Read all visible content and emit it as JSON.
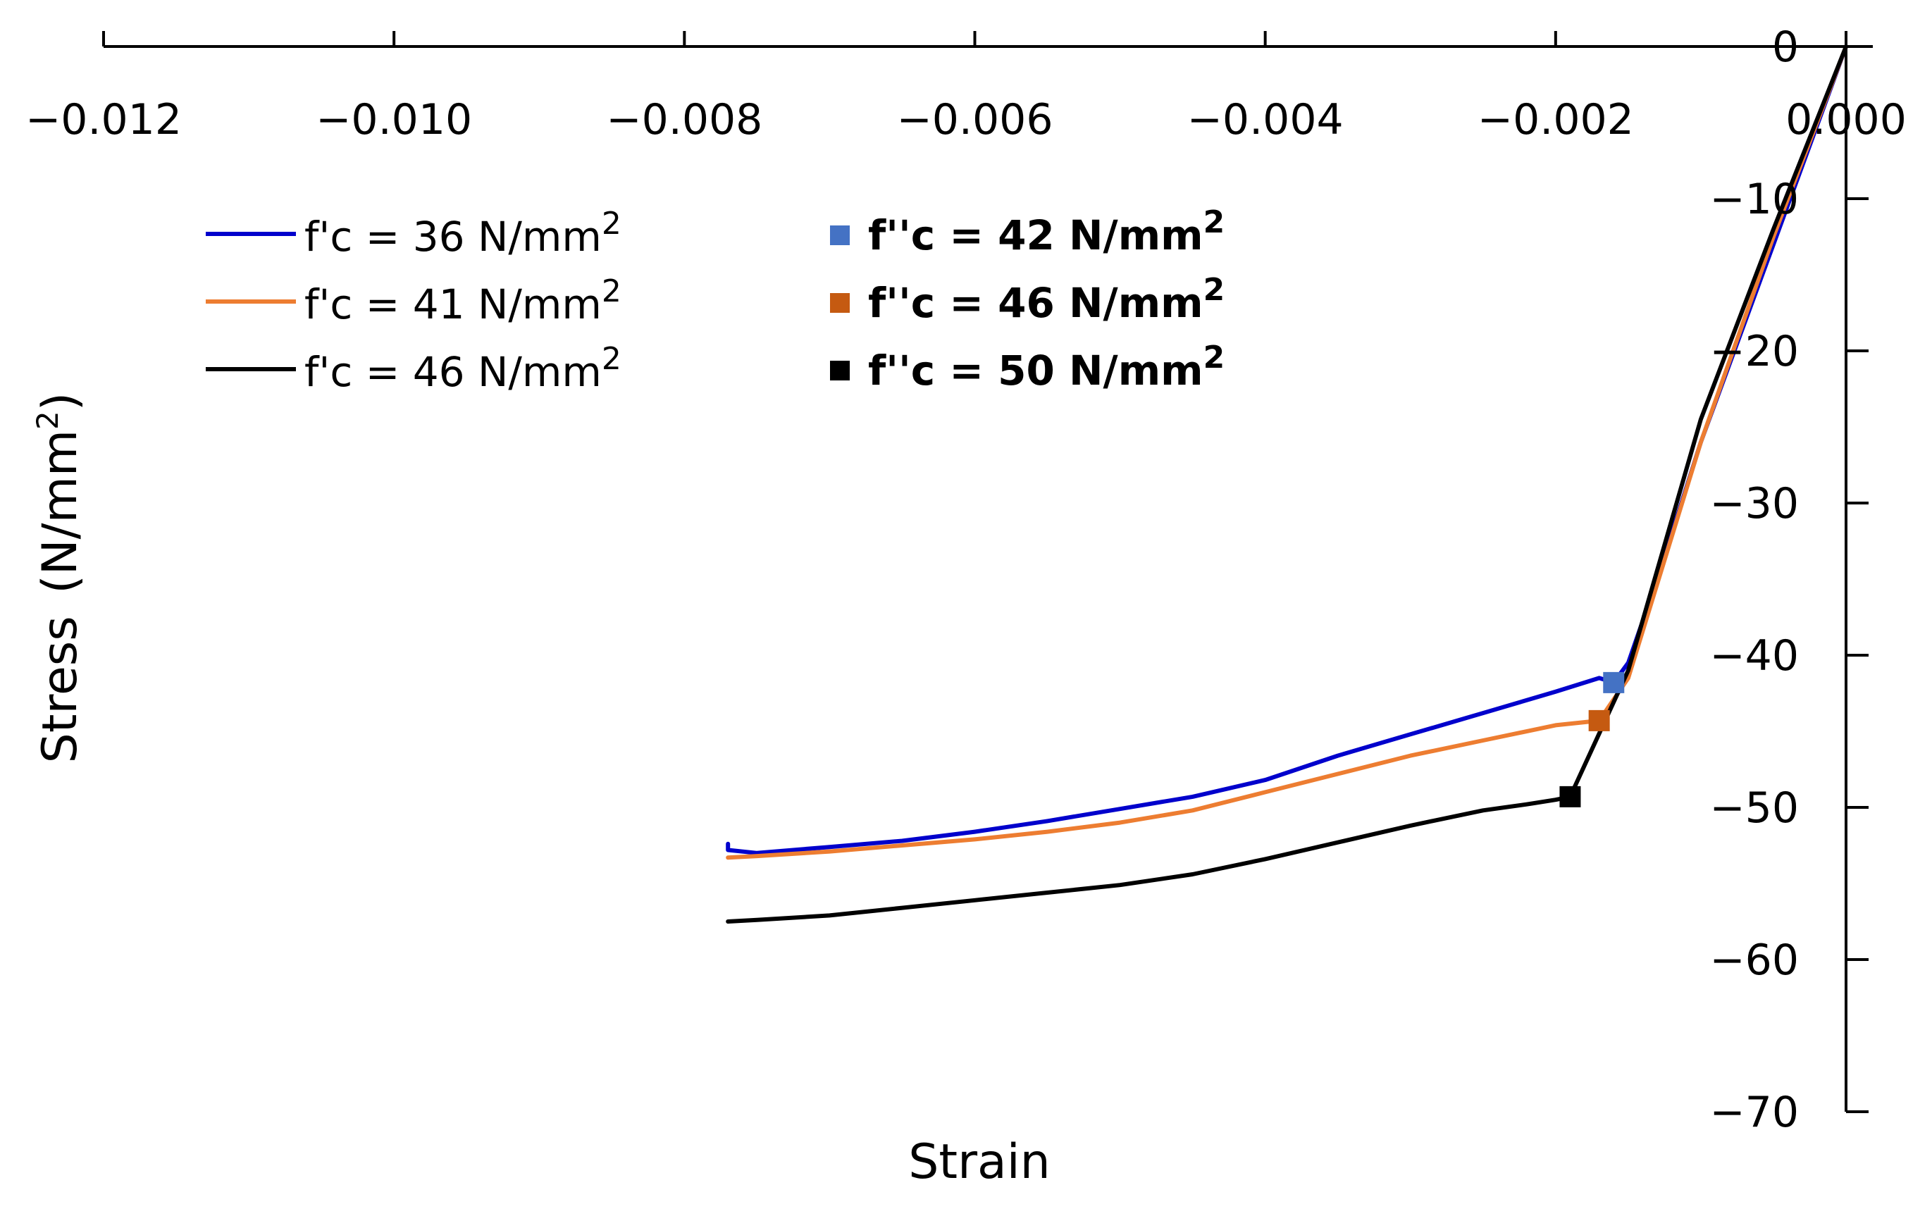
{
  "chart_data": {
    "type": "line",
    "title": "",
    "xlabel": "Strain",
    "ylabel": "Stress",
    "ylabel_unit_prefix": "(N/mm",
    "ylabel_unit_exp": "2",
    "ylabel_unit_suffix": ")",
    "xlim": [
      -0.012,
      0.0
    ],
    "ylim": [
      -70,
      0
    ],
    "x_tick_values": [
      -0.012,
      -0.01,
      -0.008,
      -0.006,
      -0.004,
      -0.002,
      0.0
    ],
    "x_tick_labels": [
      "−0.012",
      "−0.010",
      "−0.008",
      "−0.006",
      "−0.004",
      "−0.002",
      "0.000"
    ],
    "y_tick_values": [
      0,
      -10,
      -20,
      -30,
      -40,
      -50,
      -60,
      -70
    ],
    "y_tick_labels": [
      "0",
      "−10",
      "−20",
      "−30",
      "−40",
      "−50",
      "−60",
      "−70"
    ],
    "grid": false,
    "legend_position": "top-left",
    "series": [
      {
        "name": "f'c = 36 N/mm2",
        "legend_text": "f'c = 36 N/mm",
        "legend_sup": "2",
        "color": "#0000CC",
        "x": [
          0.0,
          -0.0005,
          -0.001,
          -0.0013,
          -0.0015,
          -0.0016,
          -0.0017,
          -0.002,
          -0.0025,
          -0.003,
          -0.0035,
          -0.004,
          -0.0045,
          -0.005,
          -0.0055,
          -0.006,
          -0.0065,
          -0.007,
          -0.0075,
          -0.0077,
          -0.0077
        ],
        "y": [
          0,
          -13,
          -26,
          -35,
          -40.5,
          -41.8,
          -41.5,
          -42.4,
          -43.8,
          -45.2,
          -46.6,
          -48.2,
          -49.3,
          -50.1,
          -50.9,
          -51.6,
          -52.2,
          -52.6,
          -53.0,
          -52.8,
          -52.4
        ]
      },
      {
        "name": "f'c = 41 N/mm2",
        "legend_text": "f'c = 41 N/mm",
        "legend_sup": "2",
        "color": "#ED7D31",
        "x": [
          0.0,
          -0.0005,
          -0.001,
          -0.0015,
          -0.0017,
          -0.002,
          -0.0025,
          -0.003,
          -0.0035,
          -0.004,
          -0.0045,
          -0.005,
          -0.0055,
          -0.006,
          -0.0065,
          -0.007,
          -0.0075,
          -0.0077
        ],
        "y": [
          0,
          -12.5,
          -26,
          -41.5,
          -44.3,
          -44.6,
          -45.6,
          -46.6,
          -47.8,
          -49.0,
          -50.2,
          -51.0,
          -51.6,
          -52.1,
          -52.5,
          -52.9,
          -53.2,
          -53.3
        ]
      },
      {
        "name": "f'c = 46 N/mm2",
        "legend_text": "f'c = 46 N/mm",
        "legend_sup": "2",
        "color": "#000000",
        "x": [
          0.0,
          -0.0005,
          -0.001,
          -0.0015,
          -0.0019,
          -0.002,
          -0.0022,
          -0.0025,
          -0.003,
          -0.0035,
          -0.004,
          -0.0045,
          -0.005,
          -0.0055,
          -0.006,
          -0.0065,
          -0.007,
          -0.0075,
          -0.0077
        ],
        "y": [
          0,
          -12,
          -24.5,
          -41,
          -49.3,
          -49.5,
          -49.8,
          -50.2,
          -51.2,
          -52.3,
          -53.4,
          -54.4,
          -55.1,
          -55.6,
          -56.1,
          -56.6,
          -57.1,
          -57.4,
          -57.5
        ]
      }
    ],
    "markers": [
      {
        "name": "f''c = 42 N/mm2",
        "legend_text": "f''c = 42 N/mm",
        "legend_sup": "2",
        "color": "#4472C4",
        "x": -0.0016,
        "y": -41.8
      },
      {
        "name": "f''c = 46 N/mm2",
        "legend_text": "f''c = 46 N/mm",
        "legend_sup": "2",
        "color": "#C55A11",
        "x": -0.0017,
        "y": -44.3
      },
      {
        "name": "f''c = 50 N/mm2",
        "legend_text": "f''c = 50 N/mm",
        "legend_sup": "2",
        "color": "#000000",
        "x": -0.0019,
        "y": -49.3
      }
    ]
  }
}
